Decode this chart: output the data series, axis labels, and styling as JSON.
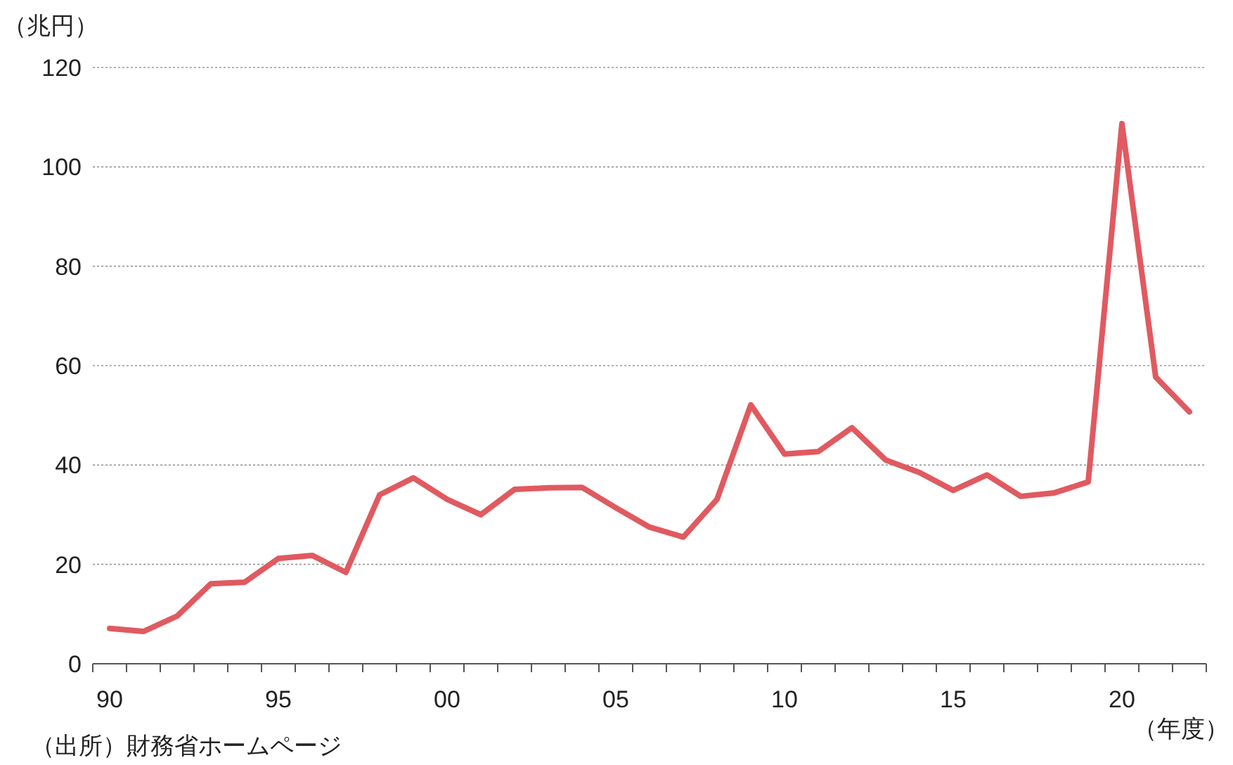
{
  "chart_data": {
    "type": "line",
    "ylabel": "（兆円）",
    "xlabel": "（年度）",
    "annotations": [
      "（出所）財務省ホームページ"
    ],
    "categories": [
      "90",
      null,
      null,
      null,
      null,
      "95",
      null,
      null,
      null,
      null,
      "00",
      null,
      null,
      null,
      null,
      "05",
      null,
      null,
      null,
      null,
      "10",
      null,
      null,
      null,
      null,
      "15",
      null,
      null,
      null,
      null,
      "20",
      null,
      null
    ],
    "series": [
      {
        "color": "#e05a60",
        "values": [
          7.1,
          6.5,
          9.6,
          16.1,
          16.4,
          21.2,
          21.8,
          18.4,
          34.0,
          37.4,
          33.1,
          30.0,
          35.1,
          35.4,
          35.5,
          31.4,
          27.5,
          25.5,
          33.1,
          52.1,
          42.2,
          42.7,
          47.5,
          41.0,
          38.5,
          34.9,
          38.0,
          33.7,
          34.4,
          36.6,
          108.7,
          57.7,
          50.7
        ]
      }
    ],
    "ylim": [
      0,
      120
    ],
    "yticks": [
      0,
      20,
      40,
      60,
      80,
      100,
      120
    ],
    "grid": "y",
    "marker": "none",
    "line_style": "solid"
  }
}
